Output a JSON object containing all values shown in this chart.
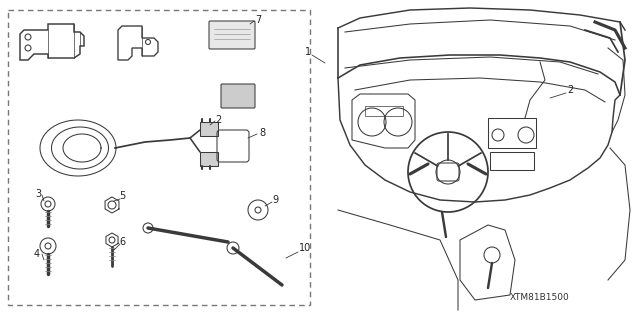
{
  "background_color": "#ffffff",
  "line_color": "#3a3a3a",
  "label_color": "#222222",
  "diagram_label": "XTM81B1500",
  "figsize": [
    6.4,
    3.19
  ],
  "dpi": 100,
  "lw": 0.75
}
